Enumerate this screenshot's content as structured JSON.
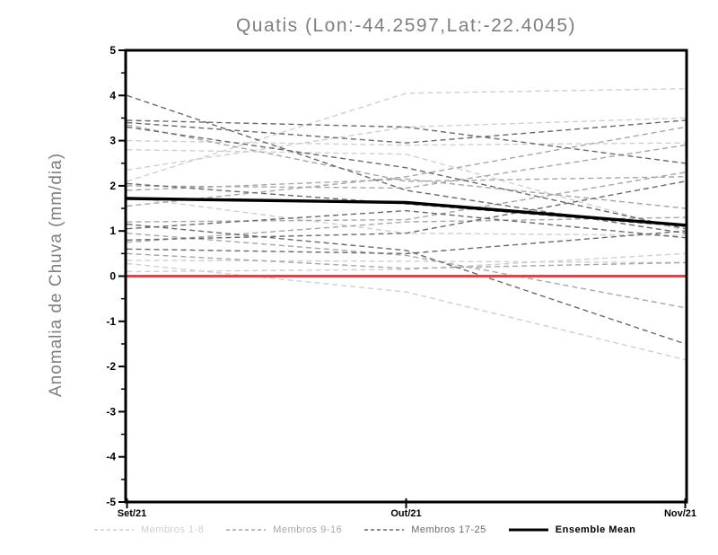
{
  "title": "Quatis (Lon:-44.2597,Lat:-22.4045)",
  "chart_data": {
    "type": "line",
    "title": "Quatis (Lon:-44.2597,Lat:-22.4045)",
    "xlabel": "",
    "ylabel": "Anomalia de Chuva (mm/dia)",
    "x_categories": [
      "Set/21",
      "Out/21",
      "Nov/21"
    ],
    "ylim": [
      -5,
      5
    ],
    "y_major_ticks": [
      5,
      4,
      3,
      2,
      1,
      0,
      -1,
      -2,
      -3,
      -4,
      -5
    ],
    "y_minor_tick_step": 0.5,
    "grid": false,
    "legend_position": "bottom",
    "frame_color": "#000000",
    "zero_line": {
      "value": 0,
      "color": "#f23b43"
    },
    "series": [
      {
        "name": "Membros 1-8",
        "color": "#cfcfcf",
        "style": "dashed",
        "members": [
          [
            2.1,
            4.05,
            4.15
          ],
          [
            3.0,
            2.9,
            2.95
          ],
          [
            2.8,
            2.7,
            1.0
          ],
          [
            2.35,
            3.3,
            3.5
          ],
          [
            1.75,
            0.95,
            0.9
          ],
          [
            0.28,
            -0.35,
            -1.85
          ],
          [
            0.35,
            0.33,
            0.3
          ],
          [
            0.1,
            0.15,
            0.5
          ]
        ]
      },
      {
        "name": "Membros 9-16",
        "color": "#a6a6a6",
        "style": "dashed",
        "members": [
          [
            3.35,
            2.1,
            2.2
          ],
          [
            2.0,
            1.95,
            2.9
          ],
          [
            1.9,
            2.15,
            1.5
          ],
          [
            1.55,
            2.2,
            3.3
          ],
          [
            1.2,
            1.25,
            2.3
          ],
          [
            0.95,
            0.46,
            -0.7
          ],
          [
            0.75,
            1.2,
            1.3
          ],
          [
            0.5,
            0.17,
            0.3
          ]
        ]
      },
      {
        "name": "Membros 17-25",
        "color": "#696969",
        "style": "dashed",
        "members": [
          [
            4.0,
            1.9,
            0.95
          ],
          [
            3.45,
            3.3,
            2.5
          ],
          [
            3.4,
            2.95,
            3.45
          ],
          [
            3.3,
            2.4,
            1.05
          ],
          [
            2.05,
            1.6,
            1.1
          ],
          [
            1.15,
            0.57,
            -1.5
          ],
          [
            1.05,
            1.45,
            0.85
          ],
          [
            0.8,
            0.95,
            2.1
          ],
          [
            0.6,
            0.5,
            1.0
          ]
        ]
      }
    ],
    "ensemble_mean": {
      "name": "Ensemble Mean",
      "color": "#000000",
      "style": "solid",
      "values": [
        1.72,
        1.63,
        1.13
      ]
    }
  }
}
